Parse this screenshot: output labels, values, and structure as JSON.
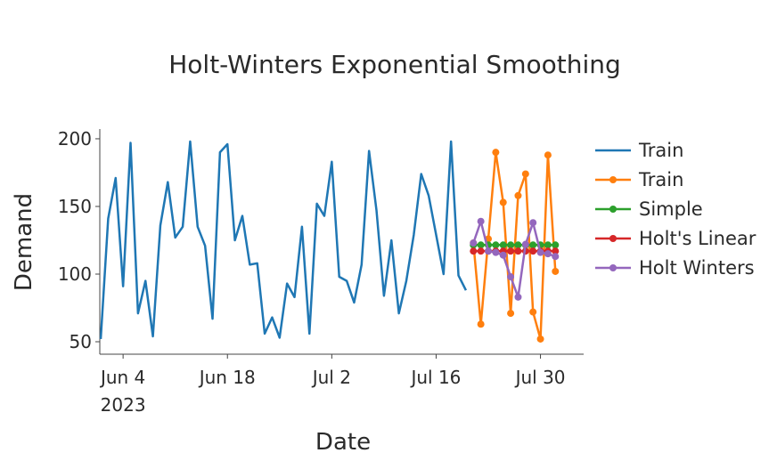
{
  "chart_data": {
    "type": "line",
    "title": "Holt-Winters Exponential Smoothing",
    "xlabel": "Date",
    "ylabel": "Demand",
    "xlim": [
      "2023-05-31T21:00",
      "2023-08-04T19:00"
    ],
    "ylim": [
      40.8,
      207.2
    ],
    "x_ticks": [
      {
        "date": "2023-06-04",
        "label": "Jun 4",
        "sub": "2023"
      },
      {
        "date": "2023-06-18",
        "label": "Jun 18",
        "sub": ""
      },
      {
        "date": "2023-07-02",
        "label": "Jul 2",
        "sub": ""
      },
      {
        "date": "2023-07-16",
        "label": "Jul 16",
        "sub": ""
      },
      {
        "date": "2023-07-30",
        "label": "Jul 30",
        "sub": ""
      }
    ],
    "y_ticks": [
      50,
      100,
      150,
      200
    ],
    "grid": false,
    "legend_position": "right",
    "series": [
      {
        "name": "Train",
        "color": "#1f77b4",
        "mode": "lines",
        "start": "2023-06-01",
        "values": [
          52,
          141,
          171,
          91,
          197,
          71,
          95,
          54,
          136,
          168,
          127,
          135,
          198,
          135,
          121,
          67,
          190,
          196,
          125,
          143,
          107,
          108,
          56,
          68,
          53,
          93,
          83,
          135,
          56,
          152,
          143,
          183,
          98,
          95,
          79,
          107,
          191,
          147,
          84,
          125,
          71,
          95,
          129,
          174,
          158,
          129,
          100,
          198,
          99,
          88
        ]
      },
      {
        "name": "Train",
        "color": "#ff7f0e",
        "mode": "lines+markers",
        "start": "2023-07-21",
        "values": [
          123,
          63,
          126,
          190,
          153,
          71,
          158,
          174,
          72,
          52,
          188,
          102
        ]
      },
      {
        "name": "Simple",
        "color": "#2ca02c",
        "mode": "lines+markers",
        "start": "2023-07-21",
        "values": [
          121.5,
          121.5,
          121.5,
          121.5,
          121.5,
          121.5,
          121.5,
          121.5,
          121.5,
          121.5,
          121.5,
          121.5
        ]
      },
      {
        "name": "Holt's Linear",
        "color": "#d62728",
        "mode": "lines+markers",
        "start": "2023-07-21",
        "values": [
          117,
          117,
          117,
          117,
          117,
          117,
          117,
          117,
          117,
          117,
          117,
          117
        ]
      },
      {
        "name": "Holt Winters",
        "color": "#9467bd",
        "mode": "lines+markers",
        "start": "2023-07-21",
        "values": [
          123,
          139,
          117,
          116,
          114,
          98,
          83,
          122,
          138,
          116,
          115,
          113
        ]
      }
    ]
  }
}
